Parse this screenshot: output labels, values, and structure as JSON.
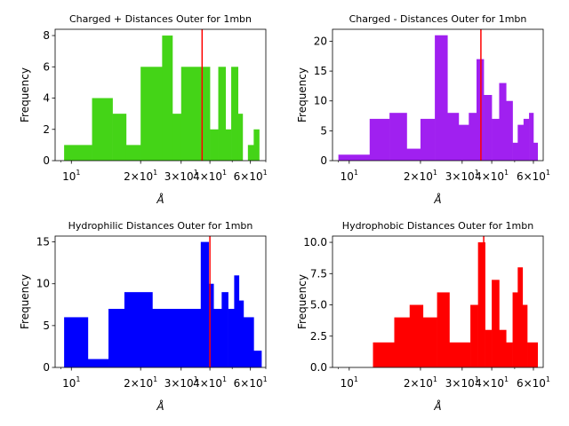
{
  "chart_data": [
    {
      "type": "bar",
      "title": "Charged + Distances Outer for 1mbn",
      "xlabel": "Å",
      "ylabel": "Frequency",
      "xscale": "log",
      "xlim": [
        8.5,
        70
      ],
      "ylim": [
        0,
        8.4
      ],
      "yticks": [
        0,
        2,
        4,
        6,
        8
      ],
      "xticklabels": [
        "10^1",
        "2×10^1",
        "3×10^1",
        "4×10^1",
        "6×10^1"
      ],
      "color": "#44d417",
      "vline": 37,
      "vline_color": "#ff0000",
      "bins": [
        {
          "x0": 9.3,
          "x1": 12.3,
          "value": 1
        },
        {
          "x0": 12.3,
          "x1": 15.1,
          "value": 4
        },
        {
          "x0": 15.1,
          "x1": 17.3,
          "value": 3
        },
        {
          "x0": 17.3,
          "x1": 20.0,
          "value": 1
        },
        {
          "x0": 20.0,
          "x1": 24.8,
          "value": 6
        },
        {
          "x0": 24.8,
          "x1": 27.5,
          "value": 8
        },
        {
          "x0": 27.5,
          "x1": 30.0,
          "value": 3
        },
        {
          "x0": 30.0,
          "x1": 40.0,
          "value": 6
        },
        {
          "x0": 40.0,
          "x1": 43.5,
          "value": 2
        },
        {
          "x0": 43.5,
          "x1": 46.8,
          "value": 6
        },
        {
          "x0": 46.8,
          "x1": 49.5,
          "value": 2
        },
        {
          "x0": 49.5,
          "x1": 53.0,
          "value": 6
        },
        {
          "x0": 53.0,
          "x1": 55.5,
          "value": 3
        },
        {
          "x0": 55.5,
          "x1": 58.5,
          "value": 0
        },
        {
          "x0": 58.5,
          "x1": 62.0,
          "value": 1
        },
        {
          "x0": 62.0,
          "x1": 65.5,
          "value": 2
        }
      ]
    },
    {
      "type": "bar",
      "title": "Charged - Distances Outer for 1mbn",
      "xlabel": "Å",
      "ylabel": "Frequency",
      "xscale": "log",
      "xlim": [
        8.5,
        66
      ],
      "ylim": [
        0,
        22
      ],
      "yticks": [
        0,
        5,
        10,
        15,
        20
      ],
      "xticklabels": [
        "10^1",
        "2×10^1",
        "3×10^1",
        "4×10^1",
        "6×10^1"
      ],
      "color": "#a020f0",
      "vline": 36,
      "vline_color": "#ff0000",
      "bins": [
        {
          "x0": 9.0,
          "x1": 12.2,
          "value": 1
        },
        {
          "x0": 12.2,
          "x1": 14.8,
          "value": 7
        },
        {
          "x0": 14.8,
          "x1": 17.5,
          "value": 8
        },
        {
          "x0": 17.5,
          "x1": 20.0,
          "value": 2
        },
        {
          "x0": 20.0,
          "x1": 23.0,
          "value": 7
        },
        {
          "x0": 23.0,
          "x1": 26.0,
          "value": 21
        },
        {
          "x0": 26.0,
          "x1": 29.0,
          "value": 8
        },
        {
          "x0": 29.0,
          "x1": 32.0,
          "value": 6
        },
        {
          "x0": 32.0,
          "x1": 34.5,
          "value": 8
        },
        {
          "x0": 34.5,
          "x1": 37.0,
          "value": 17
        },
        {
          "x0": 37.0,
          "x1": 40.0,
          "value": 11
        },
        {
          "x0": 40.0,
          "x1": 43.0,
          "value": 7
        },
        {
          "x0": 43.0,
          "x1": 46.0,
          "value": 13
        },
        {
          "x0": 46.0,
          "x1": 49.0,
          "value": 10
        },
        {
          "x0": 49.0,
          "x1": 51.5,
          "value": 3
        },
        {
          "x0": 51.5,
          "x1": 54.5,
          "value": 6
        },
        {
          "x0": 54.5,
          "x1": 57.5,
          "value": 7
        },
        {
          "x0": 57.5,
          "x1": 60.0,
          "value": 8
        },
        {
          "x0": 60.0,
          "x1": 62.5,
          "value": 3
        }
      ]
    },
    {
      "type": "bar",
      "title": "Hydrophilic Distances Outer for 1mbn",
      "xlabel": "Å",
      "ylabel": "Frequency",
      "xscale": "log",
      "xlim": [
        8.5,
        70
      ],
      "ylim": [
        0,
        15.7
      ],
      "yticks": [
        0,
        5,
        10,
        15
      ],
      "xticklabels": [
        "10^1",
        "2×10^1",
        "3×10^1",
        "4×10^1",
        "6×10^1"
      ],
      "color": "#0000ff",
      "vline": 40,
      "vline_color": "#ff0000",
      "bins": [
        {
          "x0": 9.3,
          "x1": 11.8,
          "value": 6
        },
        {
          "x0": 11.8,
          "x1": 14.5,
          "value": 1
        },
        {
          "x0": 14.5,
          "x1": 17.0,
          "value": 7
        },
        {
          "x0": 17.0,
          "x1": 22.5,
          "value": 9
        },
        {
          "x0": 22.5,
          "x1": 36.5,
          "value": 7
        },
        {
          "x0": 36.5,
          "x1": 39.5,
          "value": 15
        },
        {
          "x0": 39.5,
          "x1": 41.5,
          "value": 10
        },
        {
          "x0": 41.5,
          "x1": 45.0,
          "value": 7
        },
        {
          "x0": 45.0,
          "x1": 48.0,
          "value": 9
        },
        {
          "x0": 48.0,
          "x1": 51.0,
          "value": 7
        },
        {
          "x0": 51.0,
          "x1": 53.5,
          "value": 11
        },
        {
          "x0": 53.5,
          "x1": 56.0,
          "value": 8
        },
        {
          "x0": 56.0,
          "x1": 62.0,
          "value": 6
        },
        {
          "x0": 62.0,
          "x1": 67.0,
          "value": 2
        }
      ]
    },
    {
      "type": "bar",
      "title": "Hydrophobic Distances Outer for 1mbn",
      "xlabel": "Å",
      "ylabel": "Frequency",
      "xscale": "log",
      "xlim": [
        8.5,
        66
      ],
      "ylim": [
        0,
        10.5
      ],
      "yticks": [
        0.0,
        2.5,
        5.0,
        7.5,
        10.0
      ],
      "xticklabels": [
        "10^1",
        "2×10^1",
        "3×10^1",
        "4×10^1",
        "6×10^1"
      ],
      "color": "#ff0000",
      "vline": 37,
      "vline_color": "#ff0000",
      "bins": [
        {
          "x0": 12.6,
          "x1": 15.5,
          "value": 2
        },
        {
          "x0": 15.5,
          "x1": 18.0,
          "value": 4
        },
        {
          "x0": 18.0,
          "x1": 20.5,
          "value": 5
        },
        {
          "x0": 20.5,
          "x1": 23.5,
          "value": 4
        },
        {
          "x0": 23.5,
          "x1": 26.5,
          "value": 6
        },
        {
          "x0": 26.5,
          "x1": 32.5,
          "value": 2
        },
        {
          "x0": 32.5,
          "x1": 35.0,
          "value": 5
        },
        {
          "x0": 35.0,
          "x1": 37.5,
          "value": 10
        },
        {
          "x0": 37.5,
          "x1": 40.0,
          "value": 3
        },
        {
          "x0": 40.0,
          "x1": 43.0,
          "value": 7
        },
        {
          "x0": 43.0,
          "x1": 46.0,
          "value": 3
        },
        {
          "x0": 46.0,
          "x1": 49.0,
          "value": 2
        },
        {
          "x0": 49.0,
          "x1": 51.5,
          "value": 6
        },
        {
          "x0": 51.5,
          "x1": 54.0,
          "value": 8
        },
        {
          "x0": 54.0,
          "x1": 56.5,
          "value": 5
        },
        {
          "x0": 56.5,
          "x1": 62.5,
          "value": 2
        }
      ]
    }
  ]
}
